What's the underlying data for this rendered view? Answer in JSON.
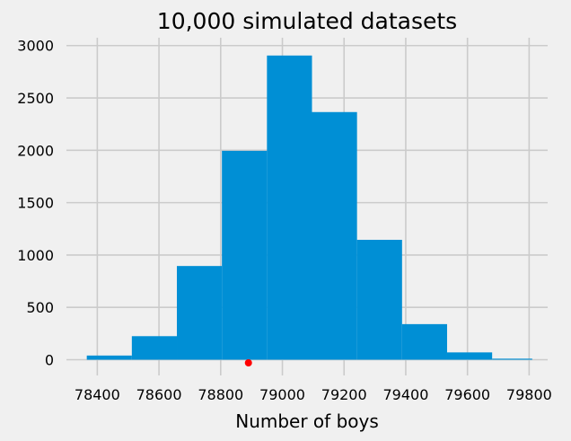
{
  "chart_data": {
    "type": "histogram",
    "title": "10,000 simulated datasets",
    "xlabel": "Number of boys",
    "ylabel": "",
    "xlim": [
      78300,
      79860
    ],
    "ylim": [
      -150,
      3075
    ],
    "x_ticks": [
      78400,
      78600,
      78800,
      79000,
      79200,
      79400,
      79600,
      79800
    ],
    "x_tick_labels": [
      "78400",
      "78600",
      "78800",
      "79000",
      "79200",
      "79400",
      "79600",
      "79800"
    ],
    "y_ticks": [
      0,
      500,
      1000,
      1500,
      2000,
      2500,
      3000
    ],
    "y_tick_labels": [
      "0",
      "500",
      "1000",
      "1500",
      "2000",
      "2500",
      "3000"
    ],
    "grid": true,
    "bar_color": "#008fd5",
    "marker_color": "#ff0000",
    "bin_edges": [
      78366,
      78512,
      78658,
      78804,
      78950,
      79096,
      79242,
      79388,
      79534,
      79680,
      79810
    ],
    "counts": [
      40,
      225,
      895,
      1995,
      2905,
      2365,
      1145,
      340,
      70,
      10
    ],
    "observed_point": {
      "x": 78890,
      "y": -30
    }
  }
}
